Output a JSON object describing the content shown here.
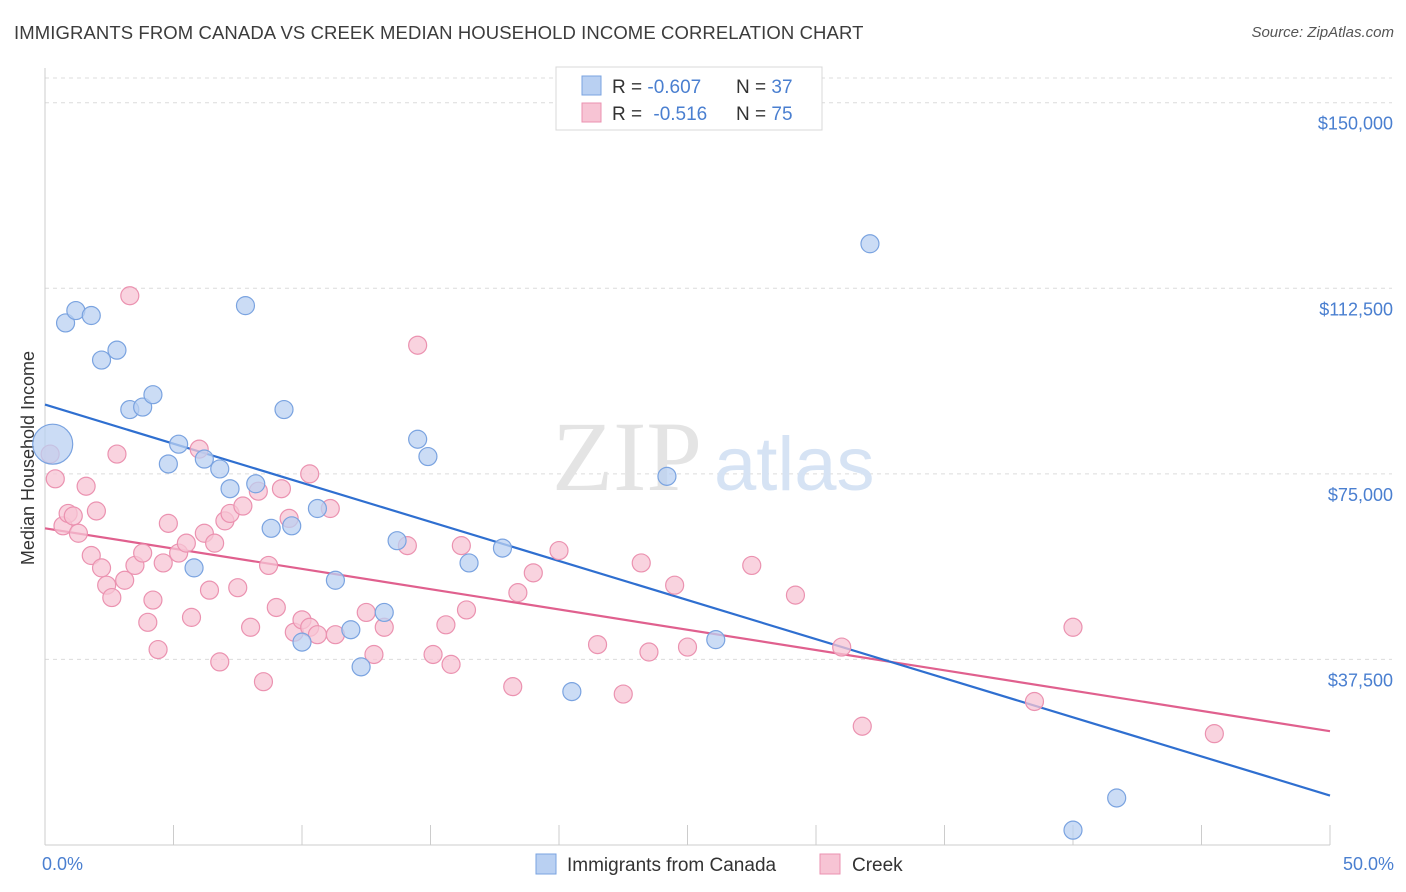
{
  "title": "IMMIGRANTS FROM CANADA VS CREEK MEDIAN HOUSEHOLD INCOME CORRELATION CHART",
  "source": "Source: ZipAtlas.com",
  "watermark": {
    "zip": "ZIP",
    "atlas": "atlas"
  },
  "colors": {
    "blue_fill": "#b9d0f2",
    "blue_stroke": "#7aa3e0",
    "blue_line": "#2f6fd0",
    "pink_fill": "#f7c4d4",
    "pink_stroke": "#eb92b0",
    "pink_line": "#e0608e",
    "grid": "#dcdcdc",
    "tick_text": "#4a7fd0"
  },
  "legend": {
    "rows": [
      {
        "r_label": "R = ",
        "r_value": "-0.607",
        "n_label": "N = ",
        "n_value": "37"
      },
      {
        "r_label": "R = ",
        "r_value": "-0.516",
        "n_label": "N = ",
        "n_value": "75"
      }
    ]
  },
  "bottom_legend": [
    "Immigrants from Canada",
    "Creek"
  ],
  "chart_data": {
    "type": "scatter",
    "title": "IMMIGRANTS FROM CANADA VS CREEK MEDIAN HOUSEHOLD INCOME CORRELATION CHART",
    "xlabel": "",
    "ylabel": "Median Household Income",
    "xlim": [
      0,
      50
    ],
    "ylim": [
      0,
      155000
    ],
    "x_tick_labels": [
      "0.0%",
      "50.0%"
    ],
    "y_ticks": [
      37500,
      75000,
      112500,
      150000
    ],
    "y_tick_labels": [
      "$37,500",
      "$75,000",
      "$112,500",
      "$150,000"
    ],
    "grid": true,
    "legend_position": "top-center",
    "series": [
      {
        "name": "Immigrants from Canada",
        "color": "#b9d0f2",
        "r": -0.607,
        "n": 37,
        "trend": {
          "x": [
            0,
            50
          ],
          "y": [
            89000,
            10000
          ]
        },
        "points": [
          {
            "x": 0.3,
            "y": 81000,
            "big": true
          },
          {
            "x": 0.8,
            "y": 105500
          },
          {
            "x": 1.2,
            "y": 108000
          },
          {
            "x": 1.8,
            "y": 107000
          },
          {
            "x": 2.2,
            "y": 98000
          },
          {
            "x": 2.8,
            "y": 100000
          },
          {
            "x": 3.3,
            "y": 88000
          },
          {
            "x": 3.8,
            "y": 88500
          },
          {
            "x": 4.2,
            "y": 91000
          },
          {
            "x": 4.8,
            "y": 77000
          },
          {
            "x": 5.2,
            "y": 81000
          },
          {
            "x": 5.8,
            "y": 56000
          },
          {
            "x": 6.2,
            "y": 78000
          },
          {
            "x": 6.8,
            "y": 76000
          },
          {
            "x": 7.2,
            "y": 72000
          },
          {
            "x": 7.8,
            "y": 109000
          },
          {
            "x": 8.2,
            "y": 73000
          },
          {
            "x": 8.8,
            "y": 64000
          },
          {
            "x": 9.3,
            "y": 88000
          },
          {
            "x": 9.6,
            "y": 64500
          },
          {
            "x": 10.0,
            "y": 41000
          },
          {
            "x": 10.6,
            "y": 68000
          },
          {
            "x": 11.3,
            "y": 53500
          },
          {
            "x": 11.9,
            "y": 43500
          },
          {
            "x": 12.3,
            "y": 36000
          },
          {
            "x": 13.2,
            "y": 47000
          },
          {
            "x": 13.7,
            "y": 61500
          },
          {
            "x": 14.5,
            "y": 82000
          },
          {
            "x": 14.9,
            "y": 78500
          },
          {
            "x": 16.5,
            "y": 57000
          },
          {
            "x": 17.8,
            "y": 60000
          },
          {
            "x": 20.5,
            "y": 31000
          },
          {
            "x": 24.2,
            "y": 74500
          },
          {
            "x": 26.1,
            "y": 41500
          },
          {
            "x": 32.1,
            "y": 121500
          },
          {
            "x": 40.0,
            "y": 3000
          },
          {
            "x": 41.7,
            "y": 9500
          }
        ]
      },
      {
        "name": "Creek",
        "color": "#f7c4d4",
        "r": -0.516,
        "n": 75,
        "trend": {
          "x": [
            0,
            50
          ],
          "y": [
            64000,
            23000
          ]
        },
        "points": [
          {
            "x": 0.2,
            "y": 79000
          },
          {
            "x": 0.4,
            "y": 74000
          },
          {
            "x": 0.7,
            "y": 64500
          },
          {
            "x": 0.9,
            "y": 67000
          },
          {
            "x": 1.1,
            "y": 66500
          },
          {
            "x": 1.3,
            "y": 63000
          },
          {
            "x": 1.6,
            "y": 72500
          },
          {
            "x": 1.8,
            "y": 58500
          },
          {
            "x": 2.0,
            "y": 67500
          },
          {
            "x": 2.2,
            "y": 56000
          },
          {
            "x": 2.4,
            "y": 52500
          },
          {
            "x": 2.6,
            "y": 50000
          },
          {
            "x": 2.8,
            "y": 79000
          },
          {
            "x": 3.1,
            "y": 53500
          },
          {
            "x": 3.3,
            "y": 111000
          },
          {
            "x": 3.5,
            "y": 56500
          },
          {
            "x": 3.8,
            "y": 59000
          },
          {
            "x": 4.0,
            "y": 45000
          },
          {
            "x": 4.2,
            "y": 49500
          },
          {
            "x": 4.4,
            "y": 39500
          },
          {
            "x": 4.6,
            "y": 57000
          },
          {
            "x": 4.8,
            "y": 65000
          },
          {
            "x": 5.2,
            "y": 59000
          },
          {
            "x": 5.5,
            "y": 61000
          },
          {
            "x": 5.7,
            "y": 46000
          },
          {
            "x": 6.0,
            "y": 80000
          },
          {
            "x": 6.2,
            "y": 63000
          },
          {
            "x": 6.4,
            "y": 51500
          },
          {
            "x": 6.6,
            "y": 61000
          },
          {
            "x": 6.8,
            "y": 37000
          },
          {
            "x": 7.0,
            "y": 65500
          },
          {
            "x": 7.2,
            "y": 67000
          },
          {
            "x": 7.5,
            "y": 52000
          },
          {
            "x": 7.7,
            "y": 68500
          },
          {
            "x": 8.0,
            "y": 44000
          },
          {
            "x": 8.3,
            "y": 71500
          },
          {
            "x": 8.5,
            "y": 33000
          },
          {
            "x": 8.7,
            "y": 56500
          },
          {
            "x": 9.0,
            "y": 48000
          },
          {
            "x": 9.2,
            "y": 72000
          },
          {
            "x": 9.5,
            "y": 66000
          },
          {
            "x": 9.7,
            "y": 43000
          },
          {
            "x": 10.0,
            "y": 45500
          },
          {
            "x": 10.3,
            "y": 75000
          },
          {
            "x": 10.3,
            "y": 44000
          },
          {
            "x": 10.6,
            "y": 42500
          },
          {
            "x": 11.1,
            "y": 68000
          },
          {
            "x": 11.3,
            "y": 42500
          },
          {
            "x": 12.5,
            "y": 47000
          },
          {
            "x": 12.8,
            "y": 38500
          },
          {
            "x": 13.2,
            "y": 44000
          },
          {
            "x": 14.1,
            "y": 60500
          },
          {
            "x": 14.5,
            "y": 101000
          },
          {
            "x": 15.1,
            "y": 38500
          },
          {
            "x": 15.6,
            "y": 44500
          },
          {
            "x": 15.8,
            "y": 36500
          },
          {
            "x": 16.2,
            "y": 60500
          },
          {
            "x": 16.4,
            "y": 47500
          },
          {
            "x": 18.2,
            "y": 32000
          },
          {
            "x": 18.4,
            "y": 51000
          },
          {
            "x": 19.0,
            "y": 55000
          },
          {
            "x": 20.0,
            "y": 59500
          },
          {
            "x": 21.5,
            "y": 40500
          },
          {
            "x": 22.5,
            "y": 30500
          },
          {
            "x": 23.2,
            "y": 57000
          },
          {
            "x": 23.5,
            "y": 39000
          },
          {
            "x": 24.5,
            "y": 52500
          },
          {
            "x": 25.0,
            "y": 40000
          },
          {
            "x": 27.5,
            "y": 56500
          },
          {
            "x": 29.2,
            "y": 50500
          },
          {
            "x": 31.0,
            "y": 40000
          },
          {
            "x": 31.8,
            "y": 24000
          },
          {
            "x": 38.5,
            "y": 29000
          },
          {
            "x": 40.0,
            "y": 44000
          },
          {
            "x": 45.5,
            "y": 22500
          }
        ]
      }
    ]
  }
}
